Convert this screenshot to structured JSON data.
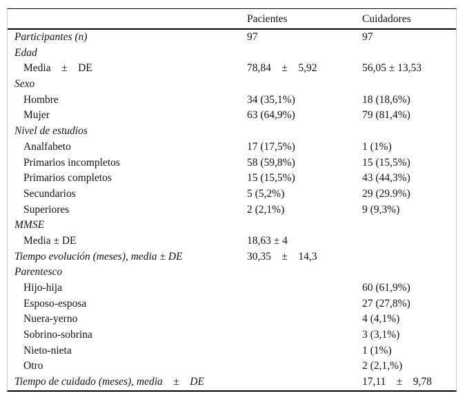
{
  "table": {
    "header": {
      "col_label": "",
      "col_pacientes": "Pacientes",
      "col_cuidadores": "Cuidadores"
    },
    "rows": [
      {
        "label": "Participantes (n)",
        "italic": true,
        "indent": false,
        "pacientes": "97",
        "cuidadores": "97"
      },
      {
        "label": "Edad",
        "italic": true,
        "indent": false,
        "pacientes": "",
        "cuidadores": ""
      },
      {
        "label": "Media    ±    DE",
        "italic": false,
        "indent": true,
        "pacientes": "78,84    ±    5,92",
        "cuidadores": "56,05 ± 13,53"
      },
      {
        "label": "Sexo",
        "italic": true,
        "indent": false,
        "pacientes": "",
        "cuidadores": ""
      },
      {
        "label": "Hombre",
        "italic": false,
        "indent": true,
        "pacientes": "34 (35,1%)",
        "cuidadores": "18 (18,6%)"
      },
      {
        "label": "Mujer",
        "italic": false,
        "indent": true,
        "pacientes": "63 (64,9%)",
        "cuidadores": "79 (81,4%)"
      },
      {
        "label": "Nivel de estudios",
        "italic": true,
        "indent": false,
        "pacientes": "",
        "cuidadores": ""
      },
      {
        "label": "Analfabeto",
        "italic": false,
        "indent": true,
        "pacientes": "17 (17,5%)",
        "cuidadores": "1 (1%)"
      },
      {
        "label": "Primarios incompletos",
        "italic": false,
        "indent": true,
        "pacientes": "58 (59,8%)",
        "cuidadores": "15 (15,5%)"
      },
      {
        "label": "Primarios completos",
        "italic": false,
        "indent": true,
        "pacientes": "15 (15,5%)",
        "cuidadores": "43 (44,3%)"
      },
      {
        "label": "Secundarios",
        "italic": false,
        "indent": true,
        "pacientes": "5 (5,2%)",
        "cuidadores": "29 (29.9%)"
      },
      {
        "label": "Superiores",
        "italic": false,
        "indent": true,
        "pacientes": "2 (2,1%)",
        "cuidadores": "9 (9,3%)"
      },
      {
        "label": "MMSE",
        "italic": true,
        "indent": false,
        "pacientes": "",
        "cuidadores": ""
      },
      {
        "label": "Media ± DE",
        "italic": false,
        "indent": true,
        "pacientes": "18,63 ± 4",
        "cuidadores": ""
      },
      {
        "label": "Tiempo evolución (meses), media ± DE",
        "italic": true,
        "indent": false,
        "pacientes": "30,35    ±    14,3",
        "cuidadores": ""
      },
      {
        "label": "Parentesco",
        "italic": true,
        "indent": false,
        "pacientes": "",
        "cuidadores": ""
      },
      {
        "label": "Hijo-hija",
        "italic": false,
        "indent": true,
        "pacientes": "",
        "cuidadores": "60 (61,9%)"
      },
      {
        "label": "Esposo-esposa",
        "italic": false,
        "indent": true,
        "pacientes": "",
        "cuidadores": "27 (27,8%)"
      },
      {
        "label": "Nuera-yerno",
        "italic": false,
        "indent": true,
        "pacientes": "",
        "cuidadores": "4 (4,1%)"
      },
      {
        "label": "Sobrino-sobrina",
        "italic": false,
        "indent": true,
        "pacientes": "",
        "cuidadores": "3 (3,1%)"
      },
      {
        "label": "Nieto-nieta",
        "italic": false,
        "indent": true,
        "pacientes": "",
        "cuidadores": "1 (1%)"
      },
      {
        "label": "Otro",
        "italic": false,
        "indent": true,
        "pacientes": "",
        "cuidadores": "2 (2,1,%)"
      },
      {
        "label": "Tiempo de cuidado (meses), media    ±    DE",
        "italic": true,
        "indent": false,
        "pacientes": "",
        "cuidadores": "17,11    ±    9,78"
      }
    ],
    "colors": {
      "rule": "#000000",
      "side_border": "#cbcbcb",
      "text": "#111111",
      "background": "#ffffff"
    }
  }
}
